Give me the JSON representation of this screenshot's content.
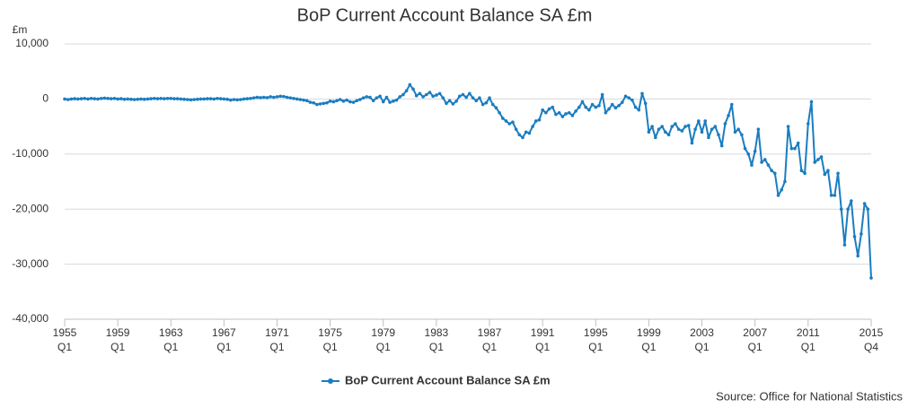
{
  "chart_data": {
    "type": "line",
    "title": "BoP Current Account Balance SA £m",
    "y_unit": "£m",
    "source": "Source: Office for National Statistics",
    "categories": [
      "1955 Q1",
      null,
      null,
      null,
      null,
      null,
      null,
      null,
      null,
      null,
      null,
      null,
      null,
      null,
      null,
      null,
      "1959 Q1",
      null,
      null,
      null,
      null,
      null,
      null,
      null,
      null,
      null,
      null,
      null,
      null,
      null,
      null,
      null,
      "1963 Q1",
      null,
      null,
      null,
      null,
      null,
      null,
      null,
      null,
      null,
      null,
      null,
      null,
      null,
      null,
      null,
      "1967 Q1",
      null,
      null,
      null,
      null,
      null,
      null,
      null,
      null,
      null,
      null,
      null,
      null,
      null,
      null,
      null,
      "1971 Q1",
      null,
      null,
      null,
      null,
      null,
      null,
      null,
      null,
      null,
      null,
      null,
      null,
      null,
      null,
      null,
      "1975 Q1",
      null,
      null,
      null,
      null,
      null,
      null,
      null,
      null,
      null,
      null,
      null,
      null,
      null,
      null,
      null,
      "1979 Q1",
      null,
      null,
      null,
      null,
      null,
      null,
      null,
      null,
      null,
      null,
      null,
      null,
      null,
      null,
      null,
      "1983 Q1",
      null,
      null,
      null,
      null,
      null,
      null,
      null,
      null,
      null,
      null,
      null,
      null,
      null,
      null,
      null,
      "1987 Q1",
      null,
      null,
      null,
      null,
      null,
      null,
      null,
      null,
      null,
      null,
      null,
      null,
      null,
      null,
      null,
      "1991 Q1",
      null,
      null,
      null,
      null,
      null,
      null,
      null,
      null,
      null,
      null,
      null,
      null,
      null,
      null,
      null,
      "1995 Q1",
      null,
      null,
      null,
      null,
      null,
      null,
      null,
      null,
      null,
      null,
      null,
      null,
      null,
      null,
      null,
      "1999 Q1",
      null,
      null,
      null,
      null,
      null,
      null,
      null,
      null,
      null,
      null,
      null,
      null,
      null,
      null,
      null,
      "2003 Q1",
      null,
      null,
      null,
      null,
      null,
      null,
      null,
      null,
      null,
      null,
      null,
      null,
      null,
      null,
      null,
      "2007 Q1",
      null,
      null,
      null,
      null,
      null,
      null,
      null,
      null,
      null,
      null,
      null,
      null,
      null,
      null,
      null,
      "2011 Q1",
      null,
      null,
      null,
      null,
      null,
      null,
      null,
      null,
      null,
      null,
      null,
      null,
      null,
      null,
      null,
      null,
      null,
      null,
      "2015 Q4"
    ],
    "series": [
      {
        "name": "BoP Current Account Balance SA £m",
        "color": "#1a7dc0",
        "values": [
          0,
          -100,
          0,
          50,
          0,
          50,
          100,
          0,
          100,
          50,
          0,
          100,
          150,
          100,
          50,
          100,
          0,
          50,
          -50,
          0,
          -50,
          -100,
          -50,
          0,
          -50,
          0,
          50,
          100,
          50,
          100,
          50,
          100,
          100,
          50,
          50,
          0,
          -50,
          -100,
          -150,
          -100,
          -50,
          0,
          0,
          50,
          50,
          0,
          100,
          50,
          0,
          -50,
          -200,
          -100,
          -150,
          -100,
          0,
          50,
          100,
          200,
          300,
          250,
          300,
          250,
          400,
          300,
          400,
          500,
          450,
          300,
          200,
          100,
          0,
          -100,
          -200,
          -300,
          -600,
          -700,
          -1000,
          -900,
          -800,
          -700,
          -400,
          -500,
          -300,
          -100,
          -400,
          -200,
          -500,
          -600,
          -300,
          -100,
          200,
          400,
          300,
          -300,
          200,
          500,
          -500,
          300,
          -600,
          -400,
          -200,
          400,
          800,
          1500,
          2600,
          1800,
          600,
          1000,
          400,
          800,
          1200,
          500,
          700,
          1000,
          200,
          -800,
          -300,
          -900,
          -400,
          500,
          800,
          300,
          1000,
          200,
          -300,
          200,
          -1000,
          -700,
          200,
          -1000,
          -1600,
          -2500,
          -3500,
          -4000,
          -4500,
          -4200,
          -5500,
          -6500,
          -7000,
          -6000,
          -6200,
          -5000,
          -4000,
          -3800,
          -2000,
          -2500,
          -1800,
          -1500,
          -2800,
          -2500,
          -3200,
          -2700,
          -2500,
          -3000,
          -2200,
          -1500,
          -500,
          -1500,
          -2000,
          -1000,
          -1500,
          -1200,
          800,
          -2500,
          -1800,
          -1000,
          -1600,
          -1200,
          -600,
          500,
          200,
          -200,
          -1500,
          -2000,
          1000,
          -800,
          -6000,
          -5000,
          -7000,
          -5500,
          -5000,
          -6000,
          -6500,
          -5000,
          -4500,
          -5500,
          -5800,
          -5000,
          -4800,
          -8000,
          -5500,
          -4000,
          -6000,
          -4000,
          -7000,
          -5500,
          -5000,
          -6500,
          -8500,
          -4500,
          -3000,
          -1000,
          -6000,
          -5500,
          -6500,
          -9000,
          -10000,
          -12000,
          -9500,
          -5500,
          -11500,
          -11000,
          -12000,
          -13000,
          -13500,
          -17500,
          -16500,
          -15000,
          -5000,
          -9000,
          -9000,
          -8000,
          -13000,
          -13500,
          -4500,
          -500,
          -11500,
          -11000,
          -10500,
          -13700,
          -13000,
          -17500,
          -17500,
          -13500,
          -20000,
          -26500,
          -20000,
          -18500,
          -25000,
          -28500,
          -24500,
          -19000,
          -20000,
          -32500
        ]
      }
    ],
    "ylim": [
      -40000,
      10000
    ],
    "yticks": [
      {
        "value": -40000,
        "label": "-40,000"
      },
      {
        "value": -30000,
        "label": "-30,000"
      },
      {
        "value": -20000,
        "label": "-20,000"
      },
      {
        "value": -10000,
        "label": "-10,000"
      },
      0,
      {
        "value": 10000,
        "label": "10,000"
      }
    ],
    "grid": true,
    "legend": "bottom"
  }
}
